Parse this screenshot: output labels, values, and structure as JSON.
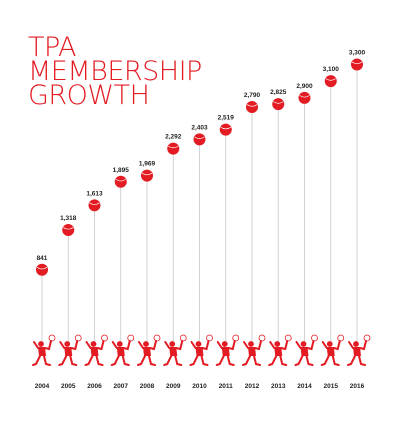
{
  "chart_data": {
    "type": "lollipop",
    "title": [
      "TPA",
      "MEMBERSHIP",
      "GROWTH"
    ],
    "categories": [
      "2004",
      "2005",
      "2006",
      "2007",
      "2008",
      "2009",
      "2010",
      "2011",
      "2012",
      "2013",
      "2014",
      "2015",
      "2016"
    ],
    "values": [
      841,
      1318,
      1613,
      1895,
      1969,
      2292,
      2403,
      2519,
      2790,
      2825,
      2900,
      3100,
      3300
    ],
    "value_labels": [
      "841",
      "1,318",
      "1,613",
      "1,895",
      "1,969",
      "2,292",
      "2,403",
      "2,519",
      "2,790",
      "2,825",
      "2,900",
      "3,100",
      "3,300"
    ],
    "color": "#e31b23",
    "ylim": [
      0,
      4000
    ]
  }
}
